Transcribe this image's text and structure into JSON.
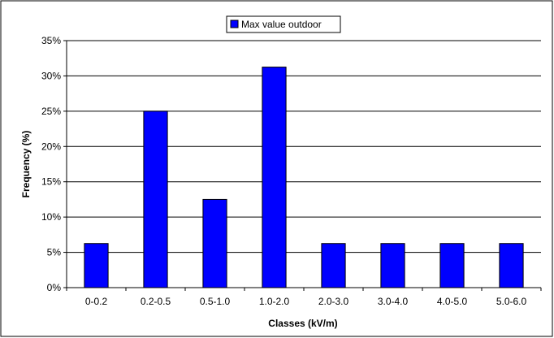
{
  "chart_data": {
    "type": "bar",
    "categories": [
      "0-0.2",
      "0.2-0.5",
      "0.5-1.0",
      "1.0-2.0",
      "2.0-3.0",
      "3.0-4.0",
      "4.0-5.0",
      "5.0-6.0"
    ],
    "series": [
      {
        "name": "Max value outdoor",
        "values": [
          6.25,
          25.0,
          12.5,
          31.25,
          6.25,
          6.25,
          6.25,
          6.25
        ],
        "color": "#0000ff"
      }
    ],
    "title": "",
    "xlabel": "Classes (kV/m)",
    "ylabel": "Frequency (%)",
    "ylim": [
      0,
      35
    ],
    "yticks": [
      0,
      5,
      10,
      15,
      20,
      25,
      30,
      35
    ],
    "ytick_labels": [
      "0%",
      "5%",
      "10%",
      "15%",
      "20%",
      "25%",
      "30%",
      "35%"
    ],
    "grid": true,
    "legend_position": "top-center"
  }
}
